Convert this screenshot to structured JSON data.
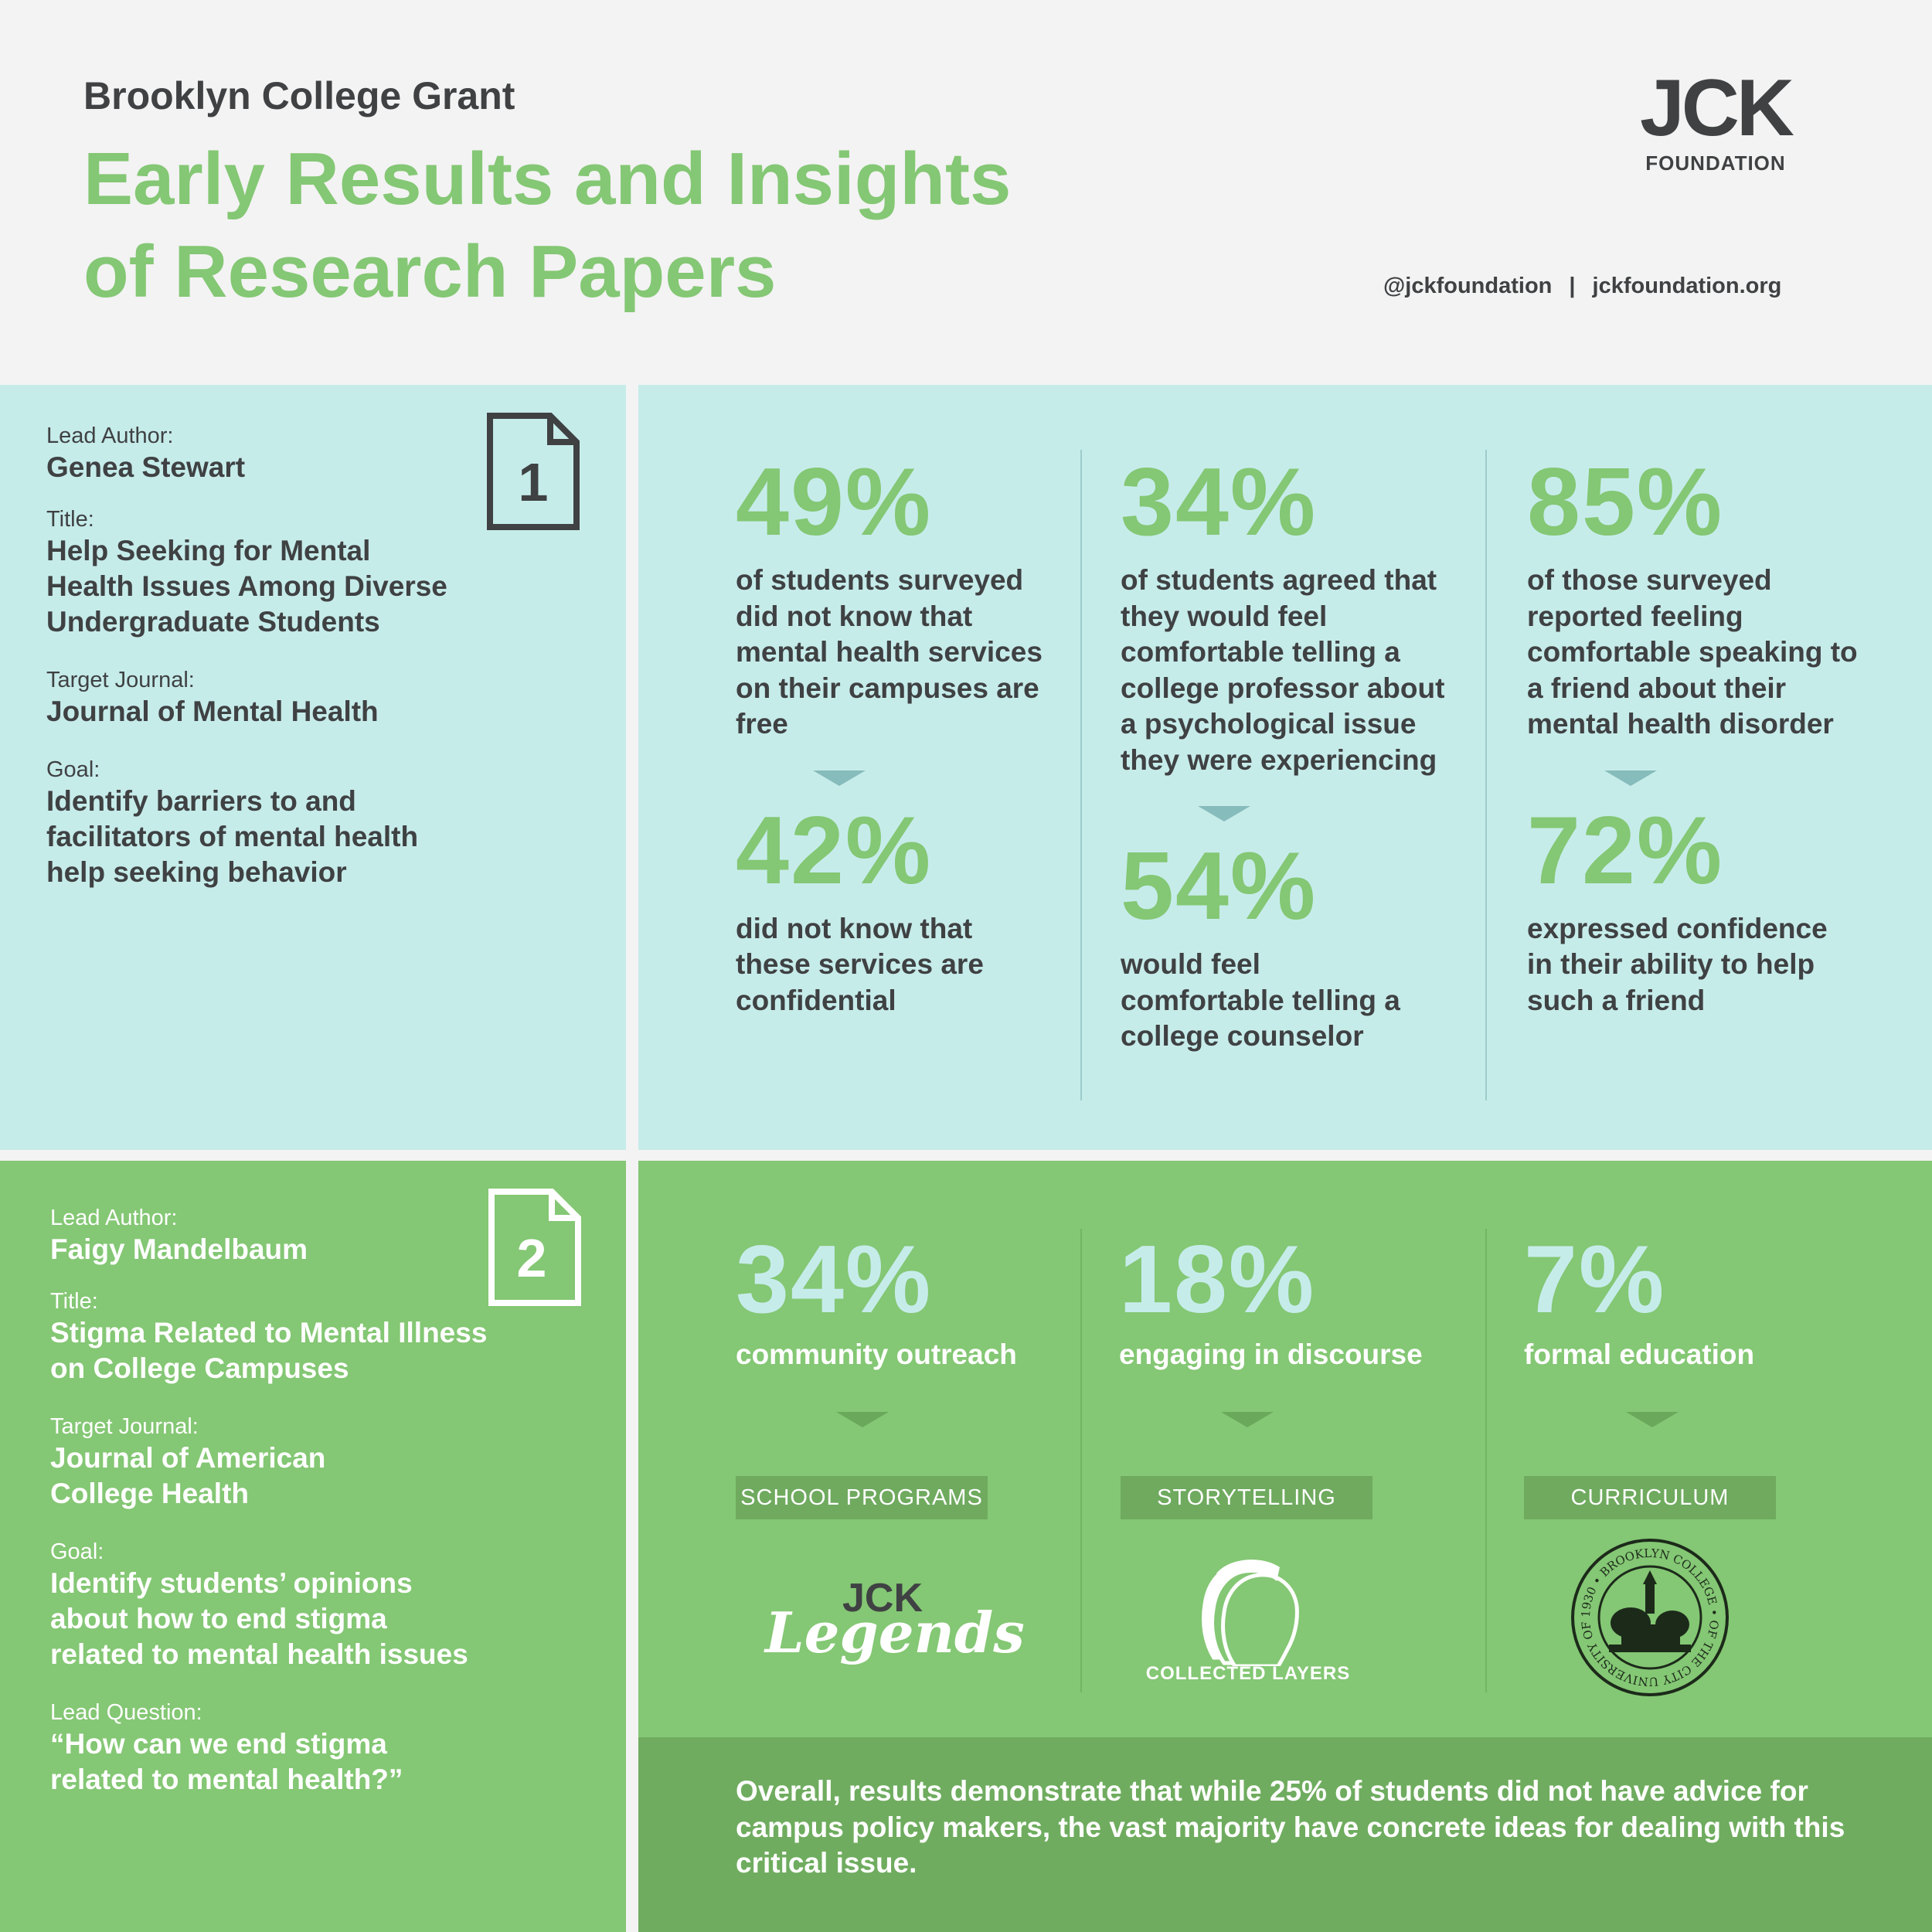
{
  "header": {
    "kicker": "Brooklyn College Grant",
    "title_line1": "Early Results and Insights",
    "title_line2": "of Research Papers",
    "logo_mark": "JCK",
    "logo_sub": "FOUNDATION",
    "handle": "@jckfoundation",
    "separator": "|",
    "website": "jckfoundation.org"
  },
  "paper1": {
    "number": "1",
    "lead_author_label": "Lead Author:",
    "lead_author": "Genea Stewart",
    "title_label": "Title:",
    "title": "Help Seeking for Mental Health Issues Among Diverse Undergraduate Students",
    "journal_label": "Target Journal:",
    "journal": "Journal of Mental Health",
    "goal_label": "Goal:",
    "goal": "Identify barriers to and facilitators of mental health help seeking behavior",
    "stats": [
      {
        "primary_value": "49%",
        "primary_text": "of students surveyed did not know that mental health services on their campuses are free",
        "secondary_value": "42%",
        "secondary_text": "did not know that these services are confidential"
      },
      {
        "primary_value": "34%",
        "primary_text": "of students agreed that they would feel comfortable telling a college professor about a psychological issue they were experiencing",
        "secondary_value": "54%",
        "secondary_text": "would feel comfortable telling a college counselor"
      },
      {
        "primary_value": "85%",
        "primary_text": "of those surveyed reported feeling comfortable speaking to a friend about their mental health disorder",
        "secondary_value": "72%",
        "secondary_text": "expressed confidence in their ability to help such a friend"
      }
    ]
  },
  "paper2": {
    "number": "2",
    "lead_author_label": "Lead Author:",
    "lead_author": "Faigy Mandelbaum",
    "title_label": "Title:",
    "title": "Stigma Related to Mental Illness on College Campuses",
    "journal_label": "Target Journal:",
    "journal": "Journal of American College Health",
    "goal_label": "Goal:",
    "goal": "Identify students’ opinions about how to end stigma related to mental health issues",
    "question_label": "Lead Question:",
    "question": "“How can we end stigma related to mental health?”",
    "stats": [
      {
        "value": "34%",
        "text": "community outreach",
        "tag": "SCHOOL PROGRAMS"
      },
      {
        "value": "18%",
        "text": "engaging in discourse",
        "tag": "STORYTELLING"
      },
      {
        "value": "7%",
        "text": "formal education",
        "tag": "CURRICULUM"
      }
    ],
    "logos": {
      "legends_jck": "JCK",
      "legends_script": "Legends",
      "layers_name": "COLLECTED LAYERS",
      "seal_text": "1930 • BROOKLYN COLLEGE • OF THE CITY UNIVERSITY OF NEW YORK •"
    },
    "conclusion": "Overall, results demonstrate that while 25% of students did not have advice for campus policy makers, the vast majority have concrete ideas for dealing with this critical issue."
  },
  "colors": {
    "accent_green": "#84c774",
    "light_teal": "#c6ecea",
    "dark_green": "#6fac5f",
    "text_dark": "#3f4143",
    "background": "#f3f3f3"
  },
  "icons": [
    "document-1-icon",
    "document-2-icon",
    "arrow-down-icon",
    "silhouette-heads-icon",
    "college-seal-icon"
  ]
}
